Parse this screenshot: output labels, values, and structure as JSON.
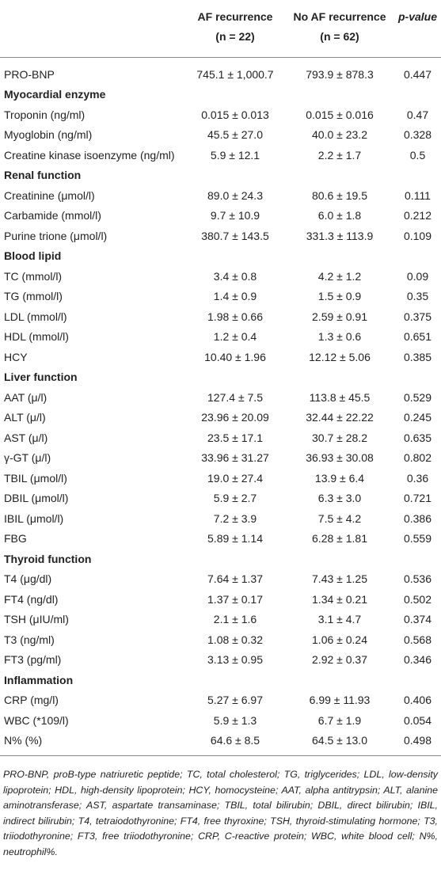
{
  "header": {
    "group1": "AF recurrence",
    "group1_n": "(n = 22)",
    "group2": "No AF recurrence",
    "group2_n": "(n = 62)",
    "p": "p-value"
  },
  "rows": [
    {
      "label": "PRO-BNP",
      "af": "745.1 ± 1,000.7",
      "no_af": "793.9 ± 878.3",
      "p": "0.447"
    },
    {
      "heading": "Myocardial enzyme"
    },
    {
      "label": "Troponin (ng/ml)",
      "af": "0.015 ± 0.013",
      "no_af": "0.015 ± 0.016",
      "p": "0.47"
    },
    {
      "label": "Myoglobin (ng/ml)",
      "af": "45.5 ± 27.0",
      "no_af": "40.0 ± 23.2",
      "p": "0.328"
    },
    {
      "label": "Creatine kinase isoenzyme (ng/ml)",
      "af": "5.9 ± 12.1",
      "no_af": "2.2 ± 1.7",
      "p": "0.5"
    },
    {
      "heading": "Renal function"
    },
    {
      "label": "Creatinine (μmol/l)",
      "af": "89.0 ± 24.3",
      "no_af": "80.6 ± 19.5",
      "p": "0.111"
    },
    {
      "label": "Carbamide (mmol/l)",
      "af": "9.7 ± 10.9",
      "no_af": "6.0 ± 1.8",
      "p": "0.212"
    },
    {
      "label": "Purine trione (μmol/l)",
      "af": "380.7 ± 143.5",
      "no_af": "331.3 ± 113.9",
      "p": "0.109"
    },
    {
      "heading": "Blood lipid"
    },
    {
      "label": "TC (mmol/l)",
      "af": "3.4 ± 0.8",
      "no_af": "4.2 ± 1.2",
      "p": "0.09"
    },
    {
      "label": "TG (mmol/l)",
      "af": "1.4 ± 0.9",
      "no_af": "1.5 ± 0.9",
      "p": "0.35"
    },
    {
      "label": "LDL (mmol/l)",
      "af": "1.98 ± 0.66",
      "no_af": "2.59 ± 0.91",
      "p": "0.375"
    },
    {
      "label": "HDL (mmol/l)",
      "af": "1.2 ± 0.4",
      "no_af": "1.3 ± 0.6",
      "p": "0.651"
    },
    {
      "label": "HCY",
      "af": "10.40 ± 1.96",
      "no_af": "12.12 ± 5.06",
      "p": "0.385"
    },
    {
      "heading": "Liver function"
    },
    {
      "label": "AAT (μ/l)",
      "af": "127.4 ± 7.5",
      "no_af": "113.8 ± 45.5",
      "p": "0.529"
    },
    {
      "label": "ALT (μ/l)",
      "af": "23.96 ± 20.09",
      "no_af": "32.44 ± 22.22",
      "p": "0.245"
    },
    {
      "label": "AST (μ/l)",
      "af": "23.5 ± 17.1",
      "no_af": "30.7 ± 28.2",
      "p": "0.635"
    },
    {
      "label": "γ-GT (μ/l)",
      "af": "33.96 ± 31.27",
      "no_af": "36.93 ± 30.08",
      "p": "0.802"
    },
    {
      "label": "TBIL (μmol/l)",
      "af": "19.0 ± 27.4",
      "no_af": "13.9 ± 6.4",
      "p": "0.36"
    },
    {
      "label": "DBIL (μmol/l)",
      "af": "5.9 ± 2.7",
      "no_af": "6.3 ± 3.0",
      "p": "0.721"
    },
    {
      "label": "IBIL (μmol/l)",
      "af": "7.2 ± 3.9",
      "no_af": "7.5 ± 4.2",
      "p": "0.386"
    },
    {
      "label": "FBG",
      "af": "5.89 ± 1.14",
      "no_af": "6.28 ± 1.81",
      "p": "0.559"
    },
    {
      "heading": "Thyroid function"
    },
    {
      "label": "T4 (μg/dl)",
      "af": "7.64 ± 1.37",
      "no_af": "7.43 ± 1.25",
      "p": "0.536"
    },
    {
      "label": "FT4 (ng/dl)",
      "af": "1.37 ± 0.17",
      "no_af": "1.34 ± 0.21",
      "p": "0.502"
    },
    {
      "label": "TSH (μIU/ml)",
      "af": "2.1 ± 1.6",
      "no_af": "3.1 ± 4.7",
      "p": "0.374"
    },
    {
      "label": "T3 (ng/ml)",
      "af": "1.08 ± 0.32",
      "no_af": "1.06 ± 0.24",
      "p": "0.568"
    },
    {
      "label": "FT3 (pg/ml)",
      "af": "3.13 ± 0.95",
      "no_af": "2.92 ± 0.37",
      "p": "0.346"
    },
    {
      "heading": "Inflammation"
    },
    {
      "label": "CRP (mg/l)",
      "af": "5.27 ± 6.97",
      "no_af": "6.99 ± 11.93",
      "p": "0.406"
    },
    {
      "label": "WBC (*109/l)",
      "af": "5.9 ± 1.3",
      "no_af": "6.7 ± 1.9",
      "p": "0.054"
    },
    {
      "label": "N% (%)",
      "af": "64.6 ± 8.5",
      "no_af": "64.5 ± 13.0",
      "p": "0.498"
    }
  ],
  "footnote": "PRO-BNP, proB-type natriuretic peptide; TC, total cholesterol; TG, triglycerides; LDL, low-density lipoprotein; HDL, high-density lipoprotein; HCY, homocysteine; AAT, alpha antitrypsin; ALT, alanine aminotransferase; AST, aspartate transaminase; TBIL, total bilirubin; DBIL, direct bilirubin; IBIL, indirect bilirubin; T4, tetraiodothyronine; FT4, free thyroxine; TSH, thyroid-stimulating hormone; T3, triiodothyronine; FT3, free triiodothyronine; CRP, C-reactive protein; WBC, white blood cell; N%, neutrophil%."
}
